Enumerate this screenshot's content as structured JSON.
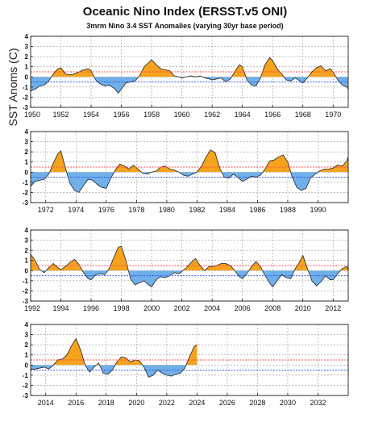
{
  "title": "Oceanic Nino Index (ERSST.v5 ONI)",
  "subtitle": "3mrm Nino 3.4 SST Anomalies (varying 30yr base period)",
  "ylabel": "SST Anoms (C)",
  "colors": {
    "warm": "#f5a31d",
    "cool": "#6fb0ea",
    "line": "#222222",
    "warm_threshold": "#ff4d4d",
    "cool_threshold": "#3355dd",
    "grid": "#9a9a9a"
  },
  "chart_data": [
    {
      "type": "area",
      "xlim": [
        1950,
        1971
      ],
      "ylim": [
        -3,
        4
      ],
      "yticks": [
        -3,
        -2,
        -1,
        0,
        1,
        2,
        3,
        4
      ],
      "xticks": [
        "1950",
        "1952",
        "1954",
        "1956",
        "1958",
        "1960",
        "1962",
        "1964",
        "1966",
        "1968",
        "1970"
      ],
      "thresholds": [
        0.5,
        -0.5
      ],
      "grid": true,
      "series": [
        {
          "x": [
            1950.0,
            1950.3,
            1950.6,
            1950.9,
            1951.2,
            1951.5,
            1951.8,
            1952.0,
            1952.3,
            1952.6,
            1952.9,
            1953.2,
            1953.5,
            1953.8,
            1954.0,
            1954.3,
            1954.6,
            1954.9,
            1955.2,
            1955.5,
            1955.8,
            1956.0,
            1956.3,
            1956.6,
            1956.9,
            1957.2,
            1957.5,
            1957.8,
            1958.0,
            1958.3,
            1958.6,
            1958.9,
            1959.2,
            1959.5,
            1959.8,
            1960.0,
            1960.3,
            1960.6,
            1960.9,
            1961.2,
            1961.5,
            1961.8,
            1962.0,
            1962.3,
            1962.6,
            1962.9,
            1963.2,
            1963.5,
            1963.8,
            1964.0,
            1964.3,
            1964.6,
            1964.9,
            1965.2,
            1965.5,
            1965.8,
            1966.0,
            1966.3,
            1966.6,
            1966.9,
            1967.2,
            1967.5,
            1967.8,
            1968.0,
            1968.3,
            1968.6,
            1968.9,
            1969.2,
            1969.5,
            1969.8,
            1970.0,
            1970.3,
            1970.6,
            1970.9,
            1971.0
          ],
          "y": [
            -1.4,
            -1.2,
            -0.9,
            -0.8,
            -0.4,
            0.3,
            0.8,
            0.9,
            0.3,
            0.2,
            0.3,
            0.5,
            0.7,
            0.8,
            0.6,
            -0.3,
            -0.7,
            -0.9,
            -0.8,
            -1.1,
            -1.6,
            -1.2,
            -0.6,
            -0.5,
            -0.4,
            0.1,
            1.0,
            1.4,
            1.7,
            1.2,
            0.8,
            0.7,
            0.6,
            0.1,
            0.0,
            -0.1,
            0.0,
            0.1,
            0.0,
            0.1,
            -0.1,
            -0.2,
            -0.3,
            -0.2,
            -0.1,
            -0.5,
            -0.2,
            0.5,
            1.2,
            1.0,
            -0.3,
            -0.8,
            -0.9,
            -0.1,
            1.2,
            1.9,
            1.6,
            0.8,
            0.3,
            -0.3,
            -0.4,
            -0.1,
            -0.4,
            -0.6,
            -0.1,
            0.5,
            0.9,
            1.1,
            0.6,
            0.8,
            0.5,
            -0.3,
            -0.8,
            -1.0,
            -1.2
          ]
        }
      ]
    },
    {
      "type": "area",
      "xlim": [
        1971,
        1992
      ],
      "ylim": [
        -3,
        4
      ],
      "yticks": [
        -3,
        -2,
        -1,
        0,
        1,
        2,
        3,
        4
      ],
      "xticks": [
        "1972",
        "1974",
        "1976",
        "1978",
        "1980",
        "1982",
        "1984",
        "1986",
        "1988",
        "1990"
      ],
      "thresholds": [
        0.5,
        -0.5
      ],
      "grid": true,
      "series": [
        {
          "x": [
            1971.0,
            1971.3,
            1971.6,
            1971.9,
            1972.2,
            1972.5,
            1972.8,
            1973.0,
            1973.3,
            1973.6,
            1973.9,
            1974.2,
            1974.5,
            1974.8,
            1975.1,
            1975.4,
            1975.7,
            1976.0,
            1976.3,
            1976.6,
            1976.9,
            1977.2,
            1977.5,
            1977.8,
            1978.1,
            1978.4,
            1978.7,
            1979.0,
            1979.3,
            1979.6,
            1979.9,
            1980.2,
            1980.5,
            1980.8,
            1981.1,
            1981.4,
            1981.7,
            1982.0,
            1982.3,
            1982.6,
            1982.9,
            1983.2,
            1983.5,
            1983.8,
            1984.1,
            1984.4,
            1984.7,
            1985.0,
            1985.3,
            1985.6,
            1985.9,
            1986.2,
            1986.5,
            1986.8,
            1987.1,
            1987.4,
            1987.7,
            1988.0,
            1988.3,
            1988.6,
            1988.9,
            1989.2,
            1989.5,
            1989.8,
            1990.1,
            1990.4,
            1990.7,
            1991.0,
            1991.3,
            1991.6,
            1991.9,
            1992.0
          ],
          "y": [
            -1.4,
            -0.9,
            -0.8,
            -0.7,
            -0.2,
            0.9,
            1.8,
            2.1,
            0.4,
            -1.1,
            -1.8,
            -2.0,
            -1.3,
            -0.7,
            -0.8,
            -1.2,
            -1.5,
            -1.6,
            -0.6,
            0.2,
            0.8,
            0.6,
            0.3,
            0.7,
            0.3,
            -0.1,
            -0.2,
            0.0,
            0.1,
            0.5,
            0.6,
            0.3,
            0.2,
            0.0,
            -0.3,
            -0.4,
            -0.2,
            0.0,
            0.6,
            1.5,
            2.2,
            1.9,
            0.4,
            -0.5,
            -0.6,
            -0.2,
            -0.5,
            -0.9,
            -0.7,
            -0.4,
            -0.5,
            -0.3,
            0.3,
            1.1,
            1.2,
            1.5,
            1.7,
            1.0,
            -0.5,
            -1.5,
            -1.8,
            -1.6,
            -0.6,
            -0.2,
            0.1,
            0.3,
            0.3,
            0.4,
            0.7,
            0.6,
            1.1,
            1.5
          ]
        }
      ]
    },
    {
      "type": "area",
      "xlim": [
        1992,
        2013
      ],
      "ylim": [
        -3,
        4
      ],
      "yticks": [
        -3,
        -2,
        -1,
        0,
        1,
        2,
        3,
        4
      ],
      "xticks": [
        "1992",
        "1994",
        "1996",
        "1998",
        "2000",
        "2002",
        "2004",
        "2006",
        "2008",
        "2010",
        "2012"
      ],
      "thresholds": [
        0.5,
        -0.5
      ],
      "grid": true,
      "series": [
        {
          "x": [
            1992.0,
            1992.3,
            1992.6,
            1992.9,
            1993.2,
            1993.5,
            1993.8,
            1994.0,
            1994.3,
            1994.6,
            1994.9,
            1995.2,
            1995.5,
            1995.8,
            1996.0,
            1996.3,
            1996.6,
            1996.9,
            1997.2,
            1997.5,
            1997.8,
            1998.0,
            1998.3,
            1998.6,
            1998.9,
            1999.2,
            1999.5,
            1999.8,
            2000.0,
            2000.3,
            2000.6,
            2000.9,
            2001.2,
            2001.5,
            2001.8,
            2002.0,
            2002.3,
            2002.6,
            2002.9,
            2003.2,
            2003.5,
            2003.8,
            2004.0,
            2004.3,
            2004.6,
            2004.9,
            2005.2,
            2005.5,
            2005.8,
            2006.0,
            2006.3,
            2006.6,
            2006.9,
            2007.2,
            2007.5,
            2007.8,
            2008.0,
            2008.3,
            2008.6,
            2008.9,
            2009.2,
            2009.5,
            2009.8,
            2010.0,
            2010.3,
            2010.6,
            2010.9,
            2011.2,
            2011.5,
            2011.8,
            2012.0,
            2012.3,
            2012.6,
            2012.9,
            2013.0
          ],
          "y": [
            1.6,
            1.0,
            0.1,
            -0.2,
            0.3,
            0.7,
            0.3,
            0.1,
            0.4,
            0.8,
            1.1,
            0.6,
            -0.2,
            -0.8,
            -0.9,
            -0.4,
            -0.3,
            -0.4,
            0.2,
            1.3,
            2.3,
            2.4,
            1.0,
            -0.8,
            -1.4,
            -1.2,
            -1.0,
            -1.4,
            -1.6,
            -0.9,
            -0.6,
            -0.7,
            -0.5,
            -0.2,
            -0.3,
            -0.1,
            0.3,
            0.8,
            1.2,
            0.5,
            0.0,
            0.4,
            0.4,
            0.5,
            0.7,
            0.7,
            0.5,
            0.0,
            -0.6,
            -0.8,
            -0.3,
            0.4,
            0.9,
            0.4,
            -0.5,
            -1.2,
            -1.6,
            -1.0,
            -0.4,
            -0.7,
            -0.8,
            0.2,
            0.9,
            1.5,
            0.2,
            -1.0,
            -1.5,
            -1.1,
            -0.5,
            -0.9,
            -0.9,
            -0.3,
            0.2,
            0.4,
            0.1
          ]
        }
      ]
    },
    {
      "type": "area",
      "xlim": [
        2013,
        2034
      ],
      "ylim": [
        -3,
        4
      ],
      "yticks": [
        -3,
        -2,
        -1,
        0,
        1,
        2,
        3,
        4
      ],
      "xticks": [
        "2014",
        "2016",
        "2018",
        "2020",
        "2022",
        "2024",
        "2026",
        "2028",
        "2030",
        "2032"
      ],
      "thresholds": [
        0.5,
        -0.5
      ],
      "grid": true,
      "series": [
        {
          "x": [
            2013.0,
            2013.3,
            2013.6,
            2013.9,
            2014.2,
            2014.5,
            2014.8,
            2015.1,
            2015.4,
            2015.7,
            2016.0,
            2016.3,
            2016.6,
            2016.9,
            2017.2,
            2017.5,
            2017.8,
            2018.1,
            2018.4,
            2018.7,
            2019.0,
            2019.3,
            2019.6,
            2019.9,
            2020.2,
            2020.5,
            2020.8,
            2021.1,
            2021.4,
            2021.7,
            2022.0,
            2022.3,
            2022.6,
            2022.9,
            2023.2,
            2023.5,
            2023.8,
            2024.0
          ],
          "y": [
            -0.4,
            -0.4,
            -0.3,
            -0.2,
            -0.4,
            0.0,
            0.5,
            0.6,
            1.0,
            1.9,
            2.6,
            1.5,
            0.0,
            -0.7,
            -0.2,
            0.2,
            -0.8,
            -0.9,
            -0.5,
            0.3,
            0.8,
            0.7,
            0.3,
            0.5,
            0.4,
            -0.2,
            -1.2,
            -1.0,
            -0.5,
            -0.8,
            -1.0,
            -1.1,
            -0.9,
            -0.8,
            -0.3,
            0.8,
            1.8,
            2.0
          ]
        }
      ]
    }
  ]
}
